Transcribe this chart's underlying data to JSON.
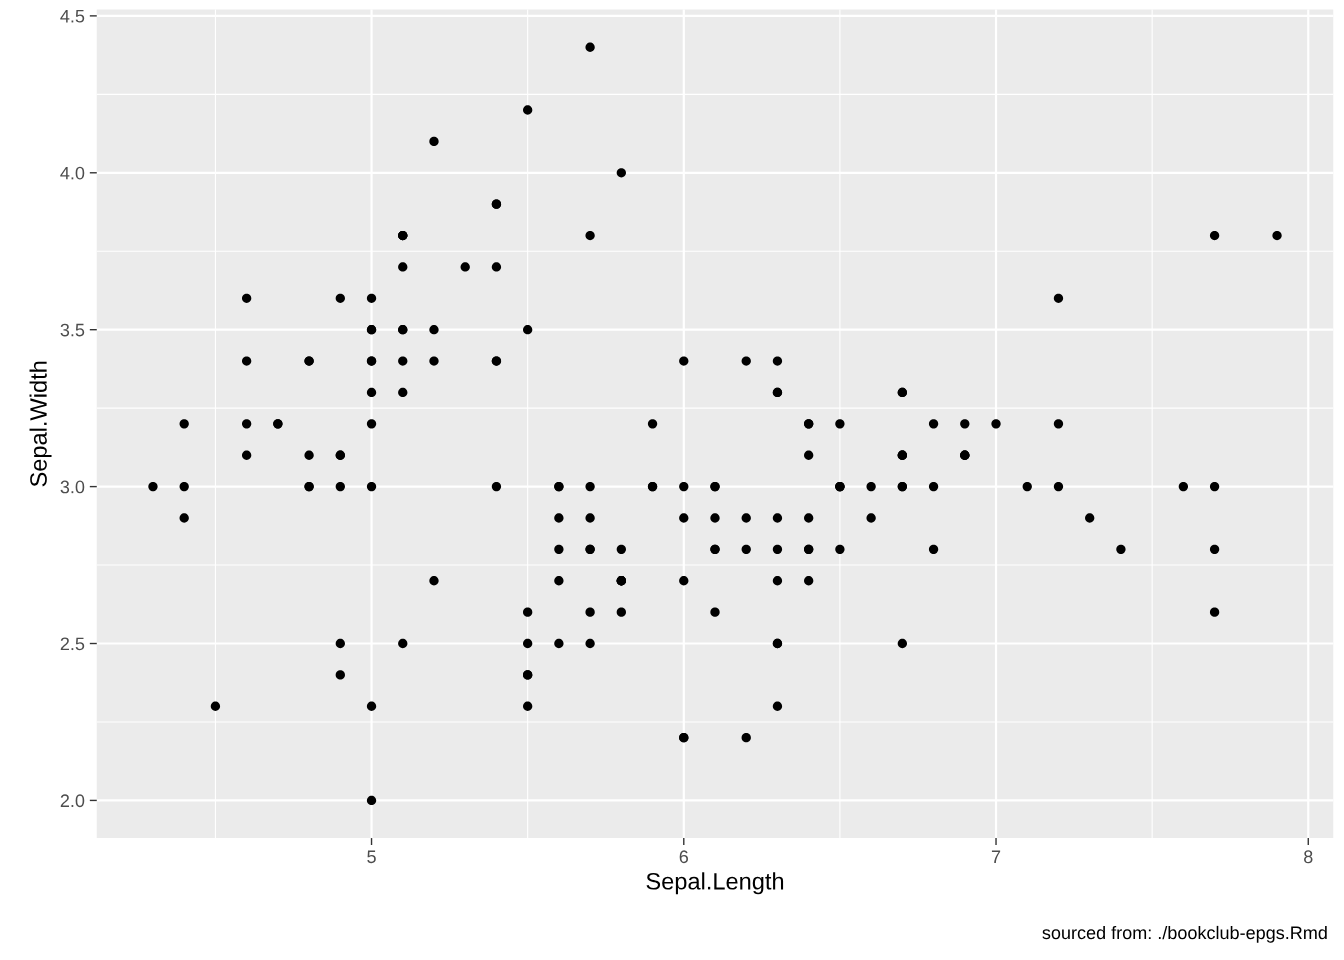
{
  "chart_data": {
    "type": "scatter",
    "xlabel": "Sepal.Length",
    "ylabel": "Sepal.Width",
    "annotations": [
      "sourced from: ./bookclub-epgs.Rmd"
    ],
    "xlim": [
      4.12,
      8.08
    ],
    "xticks": [
      5,
      6,
      7,
      8
    ],
    "ylim": [
      1.88,
      4.52
    ],
    "yticks": [
      {
        "value": 2.0,
        "label": "2.0"
      },
      {
        "value": 2.5,
        "label": "2.5"
      },
      {
        "value": 3.0,
        "label": "3.0"
      },
      {
        "value": 3.5,
        "label": "3.5"
      },
      {
        "value": 4.0,
        "label": "4.0"
      },
      {
        "value": 4.5,
        "label": "4.5"
      }
    ],
    "grid": true,
    "marker": "circle",
    "series": [
      {
        "color": "#000000",
        "x": [
          5.1,
          4.9,
          4.7,
          4.6,
          5.0,
          5.4,
          4.6,
          5.0,
          4.4,
          4.9,
          5.4,
          4.8,
          4.8,
          4.3,
          5.8,
          5.7,
          5.4,
          5.1,
          5.7,
          5.1,
          5.4,
          5.1,
          4.6,
          5.1,
          4.8,
          5.0,
          5.0,
          5.2,
          5.2,
          4.7,
          4.8,
          5.4,
          5.2,
          5.5,
          4.9,
          5.0,
          5.5,
          4.9,
          4.4,
          5.1,
          5.0,
          4.5,
          4.4,
          5.0,
          5.1,
          4.8,
          5.1,
          4.6,
          5.3,
          5.0,
          7.0,
          6.4,
          6.9,
          5.5,
          6.5,
          5.7,
          6.3,
          4.9,
          6.6,
          5.2,
          5.0,
          5.9,
          6.0,
          6.1,
          5.6,
          6.7,
          5.6,
          5.8,
          6.2,
          5.6,
          5.9,
          6.1,
          6.3,
          6.1,
          6.4,
          6.6,
          6.8,
          6.7,
          6.0,
          5.7,
          5.5,
          5.5,
          5.8,
          6.0,
          5.4,
          6.0,
          6.7,
          6.3,
          5.6,
          5.5,
          5.5,
          6.1,
          5.8,
          5.0,
          5.6,
          5.7,
          5.7,
          6.2,
          5.1,
          5.7,
          6.3,
          5.8,
          7.1,
          6.3,
          6.5,
          7.6,
          4.9,
          7.3,
          6.7,
          7.2,
          6.5,
          6.4,
          6.8,
          5.7,
          5.8,
          6.4,
          6.5,
          7.7,
          7.7,
          6.0,
          6.9,
          5.6,
          7.7,
          6.3,
          6.7,
          7.2,
          6.2,
          6.1,
          6.4,
          7.2,
          7.4,
          7.9,
          6.4,
          6.3,
          6.1,
          7.7,
          6.3,
          6.4,
          6.0,
          6.9,
          6.7,
          6.9,
          5.8,
          6.8,
          6.7,
          6.7,
          6.3,
          6.5,
          6.2,
          5.9
        ],
        "values": [
          3.5,
          3.0,
          3.2,
          3.1,
          3.6,
          3.9,
          3.4,
          3.4,
          2.9,
          3.1,
          3.7,
          3.4,
          3.0,
          3.0,
          4.0,
          4.4,
          3.9,
          3.5,
          3.8,
          3.8,
          3.4,
          3.7,
          3.6,
          3.3,
          3.4,
          3.0,
          3.4,
          3.5,
          3.4,
          3.2,
          3.1,
          3.4,
          4.1,
          4.2,
          3.1,
          3.2,
          3.5,
          3.6,
          3.0,
          3.4,
          3.5,
          2.3,
          3.2,
          3.5,
          3.8,
          3.0,
          3.8,
          3.2,
          3.7,
          3.3,
          3.2,
          3.2,
          3.1,
          2.3,
          2.8,
          2.8,
          3.3,
          2.4,
          2.9,
          2.7,
          2.0,
          3.0,
          2.2,
          2.9,
          2.9,
          3.1,
          3.0,
          2.7,
          2.2,
          2.5,
          3.2,
          2.8,
          2.5,
          2.8,
          2.9,
          3.0,
          2.8,
          3.0,
          2.9,
          2.6,
          2.4,
          2.4,
          2.7,
          2.7,
          3.0,
          3.4,
          3.1,
          2.3,
          3.0,
          2.5,
          2.6,
          3.0,
          2.6,
          2.3,
          2.7,
          3.0,
          2.9,
          2.9,
          2.5,
          2.8,
          3.3,
          2.7,
          3.0,
          2.9,
          3.0,
          3.0,
          2.5,
          2.9,
          2.5,
          3.6,
          3.2,
          2.7,
          3.0,
          2.5,
          2.8,
          3.2,
          3.0,
          3.8,
          2.6,
          2.2,
          3.2,
          2.8,
          2.8,
          2.7,
          3.3,
          3.2,
          2.8,
          3.0,
          2.8,
          3.0,
          2.8,
          3.8,
          2.8,
          2.8,
          2.6,
          3.0,
          3.4,
          3.1,
          3.0,
          3.1,
          3.1,
          3.1,
          2.7,
          3.2,
          3.3,
          3.0,
          2.5,
          3.0,
          3.4,
          3.0
        ]
      }
    ]
  }
}
